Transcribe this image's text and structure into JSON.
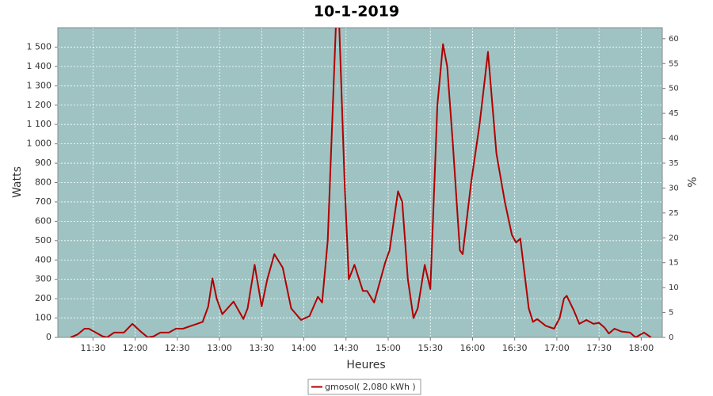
{
  "chart_data": {
    "type": "line",
    "title": "10-1-2019",
    "x_label": "Heures",
    "y_label": "Watts",
    "y2_label": "%",
    "x": [
      "11:14",
      "11:19",
      "11:24",
      "11:27",
      "11:32",
      "11:37",
      "11:40",
      "11:45",
      "11:52",
      "11:58",
      "12:04",
      "12:09",
      "12:13",
      "12:18",
      "12:24",
      "12:29",
      "12:34",
      "12:40",
      "12:44",
      "12:48",
      "12:52",
      "12:55",
      "12:58",
      "13:02",
      "13:10",
      "13:17",
      "13:20",
      "13:25",
      "13:30",
      "13:34",
      "13:39",
      "13:45",
      "13:51",
      "13:58",
      "14:04",
      "14:10",
      "14:13",
      "14:17",
      "14:23",
      "14:25",
      "14:29",
      "14:32",
      "14:36",
      "14:42",
      "14:45",
      "14:50",
      "14:58",
      "15:01",
      "15:07",
      "15:10",
      "15:14",
      "15:18",
      "15:21",
      "15:26",
      "15:30",
      "15:35",
      "15:39",
      "15:42",
      "15:46",
      "15:51",
      "15:53",
      "15:59",
      "16:05",
      "16:11",
      "16:17",
      "16:23",
      "16:28",
      "16:31",
      "16:34",
      "16:40",
      "16:43",
      "16:46",
      "16:52",
      "16:58",
      "17:02",
      "17:05",
      "17:07",
      "17:12",
      "17:16",
      "17:21",
      "17:26",
      "17:30",
      "17:34",
      "17:37",
      "17:41",
      "17:46",
      "17:52",
      "17:56",
      "18:02",
      "18:07"
    ],
    "series": [
      {
        "name": "gmosol( 2,080 kWh )",
        "color": "#b00000",
        "values": [
          0,
          15,
          45,
          45,
          25,
          5,
          0,
          25,
          25,
          70,
          30,
          0,
          5,
          25,
          25,
          45,
          45,
          60,
          70,
          80,
          160,
          305,
          200,
          120,
          185,
          95,
          150,
          375,
          160,
          300,
          430,
          360,
          150,
          90,
          110,
          210,
          180,
          500,
          1650,
          1650,
          800,
          300,
          375,
          240,
          240,
          180,
          390,
          450,
          755,
          700,
          300,
          100,
          150,
          375,
          250,
          1200,
          1515,
          1400,
          1000,
          450,
          430,
          800,
          1100,
          1475,
          950,
          700,
          530,
          490,
          510,
          150,
          80,
          95,
          60,
          45,
          100,
          200,
          215,
          140,
          70,
          90,
          70,
          75,
          50,
          20,
          45,
          30,
          25,
          0,
          25,
          0
        ]
      }
    ],
    "xlim": [
      "11:05",
      "18:15"
    ],
    "xticks": [
      "11:30",
      "12:00",
      "12:30",
      "13:00",
      "13:30",
      "14:00",
      "14:30",
      "15:00",
      "15:30",
      "16:00",
      "16:30",
      "17:00",
      "17:30",
      "18:00"
    ],
    "ylim": [
      0,
      1600
    ],
    "yticks": [
      0,
      100,
      200,
      300,
      400,
      500,
      600,
      700,
      800,
      900,
      {
        "value": 1000,
        "label": "1 000"
      },
      {
        "value": 1100,
        "label": "1 100"
      },
      {
        "value": 1200,
        "label": "1 200"
      },
      {
        "value": 1300,
        "label": "1 300"
      },
      {
        "value": 1400,
        "label": "1 400"
      },
      {
        "value": 1500,
        "label": "1 500"
      }
    ],
    "y2lim": [
      0,
      62.2
    ],
    "y2ticks": [
      0,
      5,
      10,
      15,
      20,
      25,
      30,
      35,
      40,
      45,
      50,
      55,
      60
    ],
    "grid": true,
    "plot_background": "#9fc3c3",
    "legend": "bottom"
  }
}
